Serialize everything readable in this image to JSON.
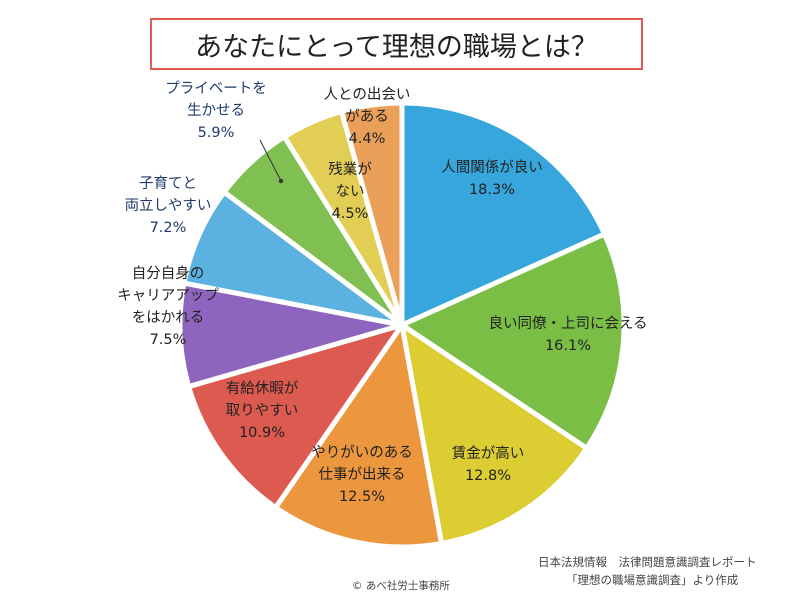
{
  "title": "あなたにとって理想の職場とは？",
  "chart_data": {
    "type": "pie",
    "title": "あなたにとって理想の職場とは？",
    "slices": [
      {
        "lines": [
          "人間関係が良い",
          "18.3%"
        ],
        "value": 18.3,
        "color": "#36a6dd"
      },
      {
        "lines": [
          "良い同僚・上司に会える",
          "16.1%"
        ],
        "value": 16.1,
        "color": "#7abe45"
      },
      {
        "lines": [
          "賃金が高い",
          "12.8%"
        ],
        "value": 12.8,
        "color": "#dccd32"
      },
      {
        "lines": [
          "やりがいのある",
          "仕事が出来る",
          "12.5%"
        ],
        "value": 12.5,
        "color": "#ec973e"
      },
      {
        "lines": [
          "有給休暇が",
          "取りやすい",
          "10.9%"
        ],
        "value": 10.9,
        "color": "#dc5a4f"
      },
      {
        "lines": [
          "自分自身の",
          "キャリアアップ",
          "をはかれる",
          "7.5%"
        ],
        "value": 7.5,
        "color": "#8d65bf"
      },
      {
        "lines": [
          "子育てと",
          "両立しやすい",
          "7.2%"
        ],
        "value": 7.2,
        "color": "#5bb2e1"
      },
      {
        "lines": [
          "プライベートを",
          "生かせる",
          "5.9%"
        ],
        "value": 5.9,
        "color": "#80bf52"
      },
      {
        "lines": [
          "残業が",
          "ない",
          "4.5%"
        ],
        "value": 4.5,
        "color": "#e3ce55"
      },
      {
        "lines": [
          "人との出会い",
          "がある",
          "4.4%"
        ],
        "value": 4.4,
        "color": "#eba05a"
      }
    ]
  },
  "source_line1": "日本法規情報　法律問題意識調査レポート",
  "source_line2": "「理想の職場意識調査」より作成",
  "copyright": "© あべ社労士事務所"
}
